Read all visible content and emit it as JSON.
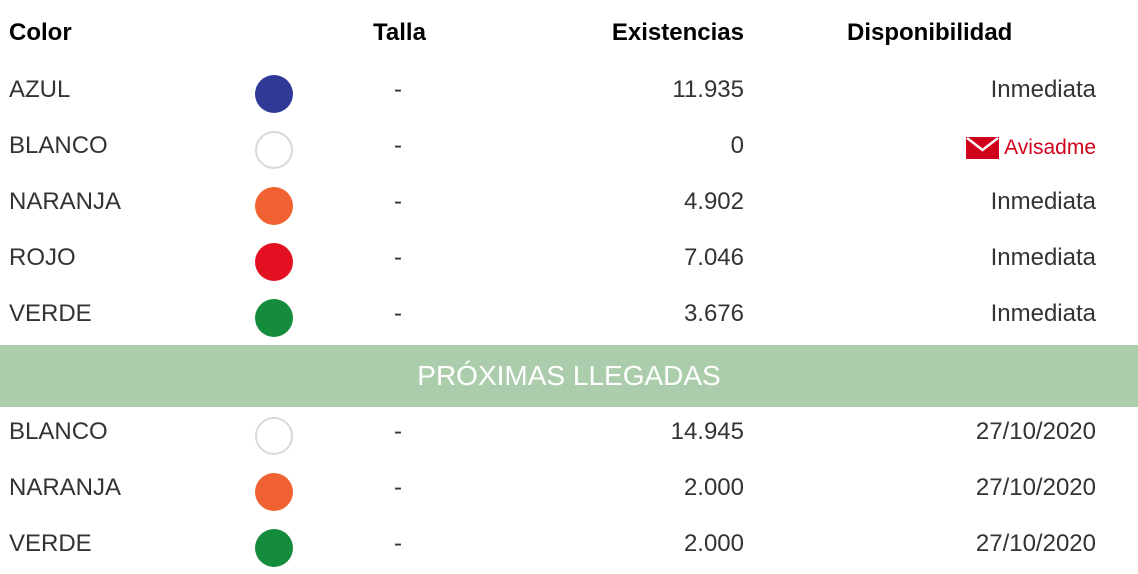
{
  "headers": {
    "color": "Color",
    "size": "Talla",
    "stock": "Existencias",
    "availability": "Disponibilidad"
  },
  "current_stock": [
    {
      "color": "AZUL",
      "swatch": "#2e3a96",
      "size": "-",
      "stock": "11.935",
      "availability": "Inmediata",
      "notify": false
    },
    {
      "color": "BLANCO",
      "swatch": "#ffffff",
      "size": "-",
      "stock": "0",
      "availability": "Avisadme",
      "notify": true
    },
    {
      "color": "NARANJA",
      "swatch": "#f16232",
      "size": "-",
      "stock": "4.902",
      "availability": "Inmediata",
      "notify": false
    },
    {
      "color": "ROJO",
      "swatch": "#e31021",
      "size": "-",
      "stock": "7.046",
      "availability": "Inmediata",
      "notify": false
    },
    {
      "color": "VERDE",
      "swatch": "#148c3c",
      "size": "-",
      "stock": "3.676",
      "availability": "Inmediata",
      "notify": false
    }
  ],
  "upcoming_banner": "PRÓXIMAS LLEGADAS",
  "upcoming_stock": [
    {
      "color": "BLANCO",
      "swatch": "#ffffff",
      "size": "-",
      "stock": "14.945",
      "availability": "27/10/2020"
    },
    {
      "color": "NARANJA",
      "swatch": "#f16232",
      "size": "-",
      "stock": "2.000",
      "availability": "27/10/2020"
    },
    {
      "color": "VERDE",
      "swatch": "#148c3c",
      "size": "-",
      "stock": "2.000",
      "availability": "27/10/2020"
    }
  ],
  "icons": {
    "notify": "mail-icon"
  },
  "colors": {
    "banner_bg": "#abcdab",
    "notify_red": "#d0021b",
    "text": "#333333"
  }
}
